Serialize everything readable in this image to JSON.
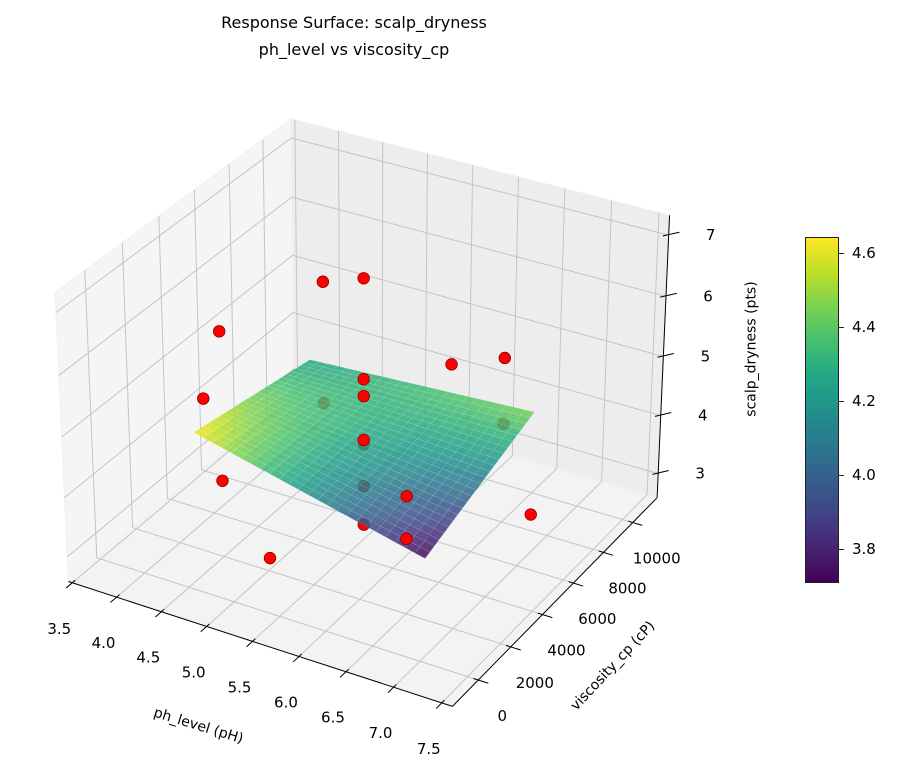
{
  "chart_data": {
    "type": "surface3d",
    "title": "Response Surface: scalp_dryness",
    "subtitle": "ph_level vs viscosity_cp",
    "xlabel": "ph_level (pH)",
    "ylabel": "viscosity_cp (cP)",
    "zlabel": "scalp_dryness (pts)",
    "xlim": [
      3.456,
      7.61
    ],
    "ylim": [
      -1550,
      11700
    ],
    "zlim": [
      2.58,
      7.32
    ],
    "x_ticks": [
      "3.5",
      "4.0",
      "4.5",
      "5.0",
      "5.5",
      "6.0",
      "6.5",
      "7.0",
      "7.5"
    ],
    "y_ticks": [
      "0",
      "2000",
      "4000",
      "6000",
      "8000",
      "10000"
    ],
    "z_ticks": [
      "3",
      "4",
      "5",
      "6",
      "7"
    ],
    "grid": true,
    "surface": {
      "x": [
        4.25,
        6.75
      ],
      "y": [
        1700,
        8500
      ],
      "z": [
        [
          4.64,
          3.71
        ],
        [
          4.25,
          4.45
        ]
      ],
      "colormap": "viridis",
      "alpha": 0.85
    },
    "points": {
      "color": "#ff0000",
      "edgecolor": "#8b0000",
      "x": [
        5.5,
        5.5,
        5.5,
        5.5,
        5.5,
        5.5,
        5.5,
        4.5,
        4.5,
        6.5,
        6.5,
        4.5,
        4.5,
        6.5,
        6.5,
        3.7,
        7.3,
        5.5,
        5.5
      ],
      "y": [
        5000,
        5000,
        5000,
        5000,
        5000,
        5000,
        5000,
        2000,
        2000,
        2000,
        2000,
        8000,
        8000,
        8000,
        8000,
        5000,
        5000,
        10500,
        -500
      ],
      "z": [
        6.92,
        5.28,
        5.0,
        4.27,
        4.19,
        3.49,
        2.83,
        6.33,
        3.87,
        4.54,
        3.84,
        5.79,
        3.73,
        5.36,
        4.26,
        4.17,
        3.85,
        4.24,
        3.69
      ]
    },
    "colorbar": {
      "range": [
        3.708,
        4.643
      ],
      "ticks": [
        "3.8",
        "4.0",
        "4.2",
        "4.4",
        "4.6"
      ],
      "colormap": "viridis"
    }
  }
}
